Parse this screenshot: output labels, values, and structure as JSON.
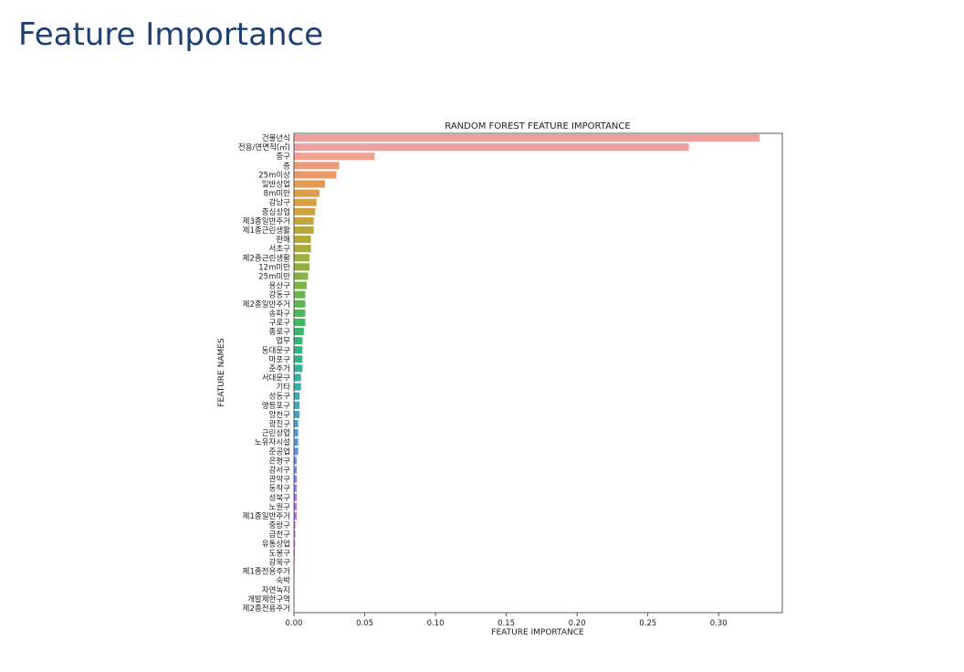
{
  "slide": {
    "title": "Feature Importance"
  },
  "chart_data": {
    "type": "bar",
    "orientation": "horizontal",
    "title": "RANDOM FOREST FEATURE IMPORTANCE",
    "xlabel": "FEATURE IMPORTANCE",
    "ylabel": "FEATURE NAMES",
    "xlim": [
      0,
      0.345
    ],
    "xticks": [
      "0.00",
      "0.05",
      "0.10",
      "0.15",
      "0.20",
      "0.25",
      "0.30"
    ],
    "grid": false,
    "categories": [
      "건물년식",
      "전용/연면적(㎡)",
      "중구",
      "층",
      "25m이상",
      "일반상업",
      "8m미만",
      "강남구",
      "중심상업",
      "제3종일반주거",
      "제1종근린생활",
      "판매",
      "서초구",
      "제2종근린생활",
      "12m미만",
      "25m미만",
      "용산구",
      "강동구",
      "제2종일반주거",
      "송파구",
      "구로구",
      "종로구",
      "업무",
      "동대문구",
      "마포구",
      "준주거",
      "서대문구",
      "기타",
      "성동구",
      "영등포구",
      "양천구",
      "광진구",
      "근린상업",
      "노유자시설",
      "준공업",
      "은평구",
      "강서구",
      "관악구",
      "동작구",
      "성북구",
      "노원구",
      "제1종일반주거",
      "중랑구",
      "금천구",
      "유통상업",
      "도봉구",
      "강북구",
      "제1종전용주거",
      "숙박",
      "자연녹지",
      "개발제한구역",
      "제2종전용주거"
    ],
    "values": [
      0.329,
      0.279,
      0.057,
      0.032,
      0.03,
      0.022,
      0.018,
      0.016,
      0.015,
      0.014,
      0.014,
      0.012,
      0.012,
      0.011,
      0.011,
      0.01,
      0.009,
      0.008,
      0.008,
      0.008,
      0.008,
      0.007,
      0.006,
      0.006,
      0.006,
      0.006,
      0.005,
      0.005,
      0.004,
      0.004,
      0.004,
      0.003,
      0.003,
      0.003,
      0.003,
      0.002,
      0.002,
      0.002,
      0.002,
      0.002,
      0.002,
      0.002,
      0.001,
      0.001,
      0.0008,
      0.0006,
      0.0005,
      0.0004,
      0.0002,
      0.0001,
      0.0001,
      0.0
    ],
    "bar_colors": [
      "#f0a09c",
      "#f0a09c",
      "#efa08f",
      "#ec9c78",
      "#ea9a66",
      "#e49a52",
      "#dd9e4a",
      "#d6a143",
      "#cda43e",
      "#c4a63c",
      "#bca93b",
      "#b3ab3a",
      "#a9ad3b",
      "#9eaf3d",
      "#93b03f",
      "#88b242",
      "#7cb446",
      "#6eb54c",
      "#5fb652",
      "#4fb65a",
      "#43b664",
      "#3db56e",
      "#39b478",
      "#38b282",
      "#38b18b",
      "#38b094",
      "#39ae9e",
      "#3aada7",
      "#3caab1",
      "#3ea8ba",
      "#41a5c4",
      "#46a1cf",
      "#4d9cd9",
      "#5698e2",
      "#6192e9",
      "#6d8def",
      "#7a88f1",
      "#8883f1",
      "#957ef0",
      "#a27aee",
      "#af76eb",
      "#bb72e6",
      "#c66ee1",
      "#d06bda",
      "#da6ad2",
      "#e269c9",
      "#e86ac0",
      "#ec6cb6",
      "#ef70ad",
      "#f074a5",
      "#f0789e",
      "#f07d98"
    ]
  }
}
